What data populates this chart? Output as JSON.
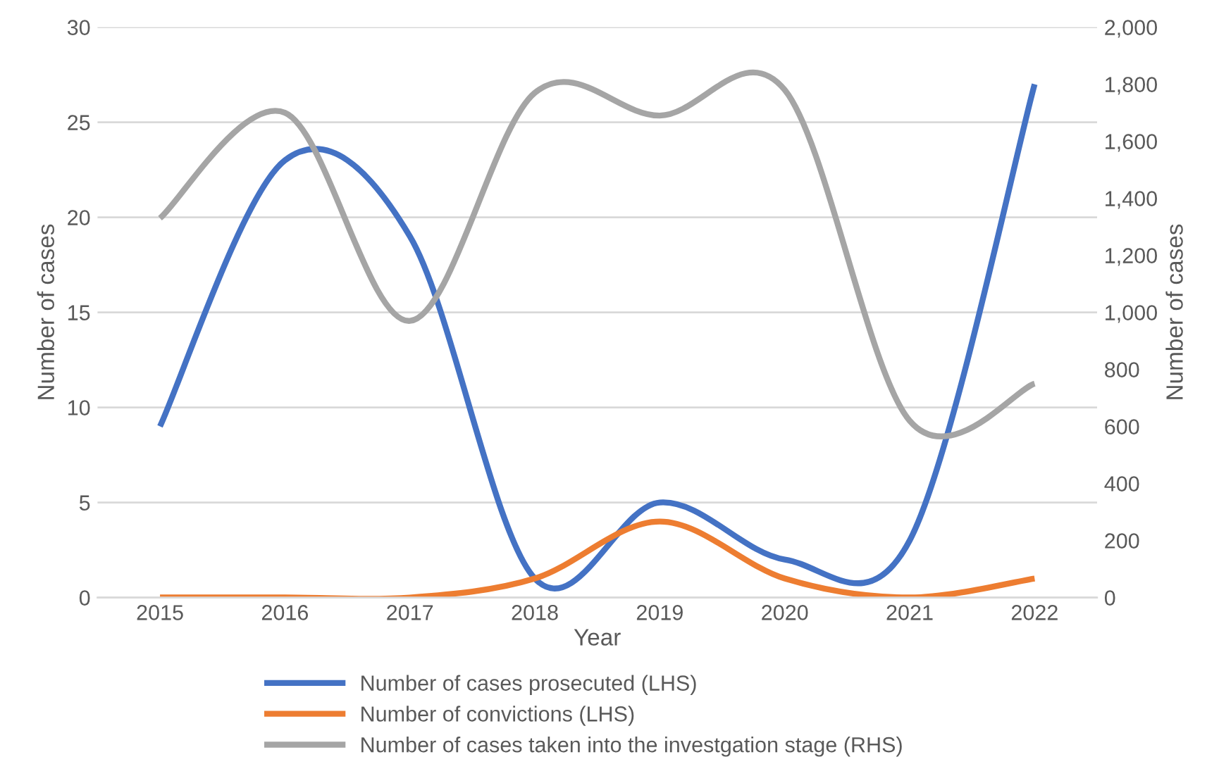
{
  "chart_data": {
    "type": "line",
    "xlabel": "Year",
    "ylabel": "Number of cases",
    "y2label": "Number of cases",
    "categories": [
      "2015",
      "2016",
      "2017",
      "2018",
      "2019",
      "2020",
      "2021",
      "2022"
    ],
    "series": [
      {
        "name": "Number of cases prosecuted (LHS)",
        "color": "#4472c4",
        "values": [
          9,
          23,
          19,
          1,
          5,
          2,
          3,
          27
        ]
      },
      {
        "name": "Number of convictions (LHS)",
        "color": "#ed7d31",
        "values": [
          0,
          0,
          0,
          1,
          4,
          1,
          0,
          1
        ]
      },
      {
        "name": "Number of cases taken into the investgation stage (RHS)",
        "color": "#a5a5a5",
        "axis": "y2",
        "values": [
          1330,
          1700,
          970,
          1770,
          1690,
          1780,
          620,
          750
        ]
      }
    ],
    "ylim": [
      0,
      30
    ],
    "yticks": [
      0,
      5,
      10,
      15,
      20,
      25,
      30
    ],
    "y2lim": [
      0,
      2000
    ],
    "y2ticks": [
      {
        "value": 0,
        "label": "0"
      },
      {
        "value": 200,
        "label": "200"
      },
      {
        "value": 400,
        "label": "400"
      },
      {
        "value": 600,
        "label": "600"
      },
      {
        "value": 800,
        "label": "800"
      },
      {
        "value": 1000,
        "label": "1,000"
      },
      {
        "value": 1200,
        "label": "1,200"
      },
      {
        "value": 1400,
        "label": "1,400"
      },
      {
        "value": 1600,
        "label": "1,600"
      },
      {
        "value": 1800,
        "label": "1,800"
      },
      {
        "value": 2000,
        "label": "2,000"
      }
    ],
    "grid": "y",
    "legend": "bottom",
    "marker": "none",
    "line_style": "solid"
  }
}
